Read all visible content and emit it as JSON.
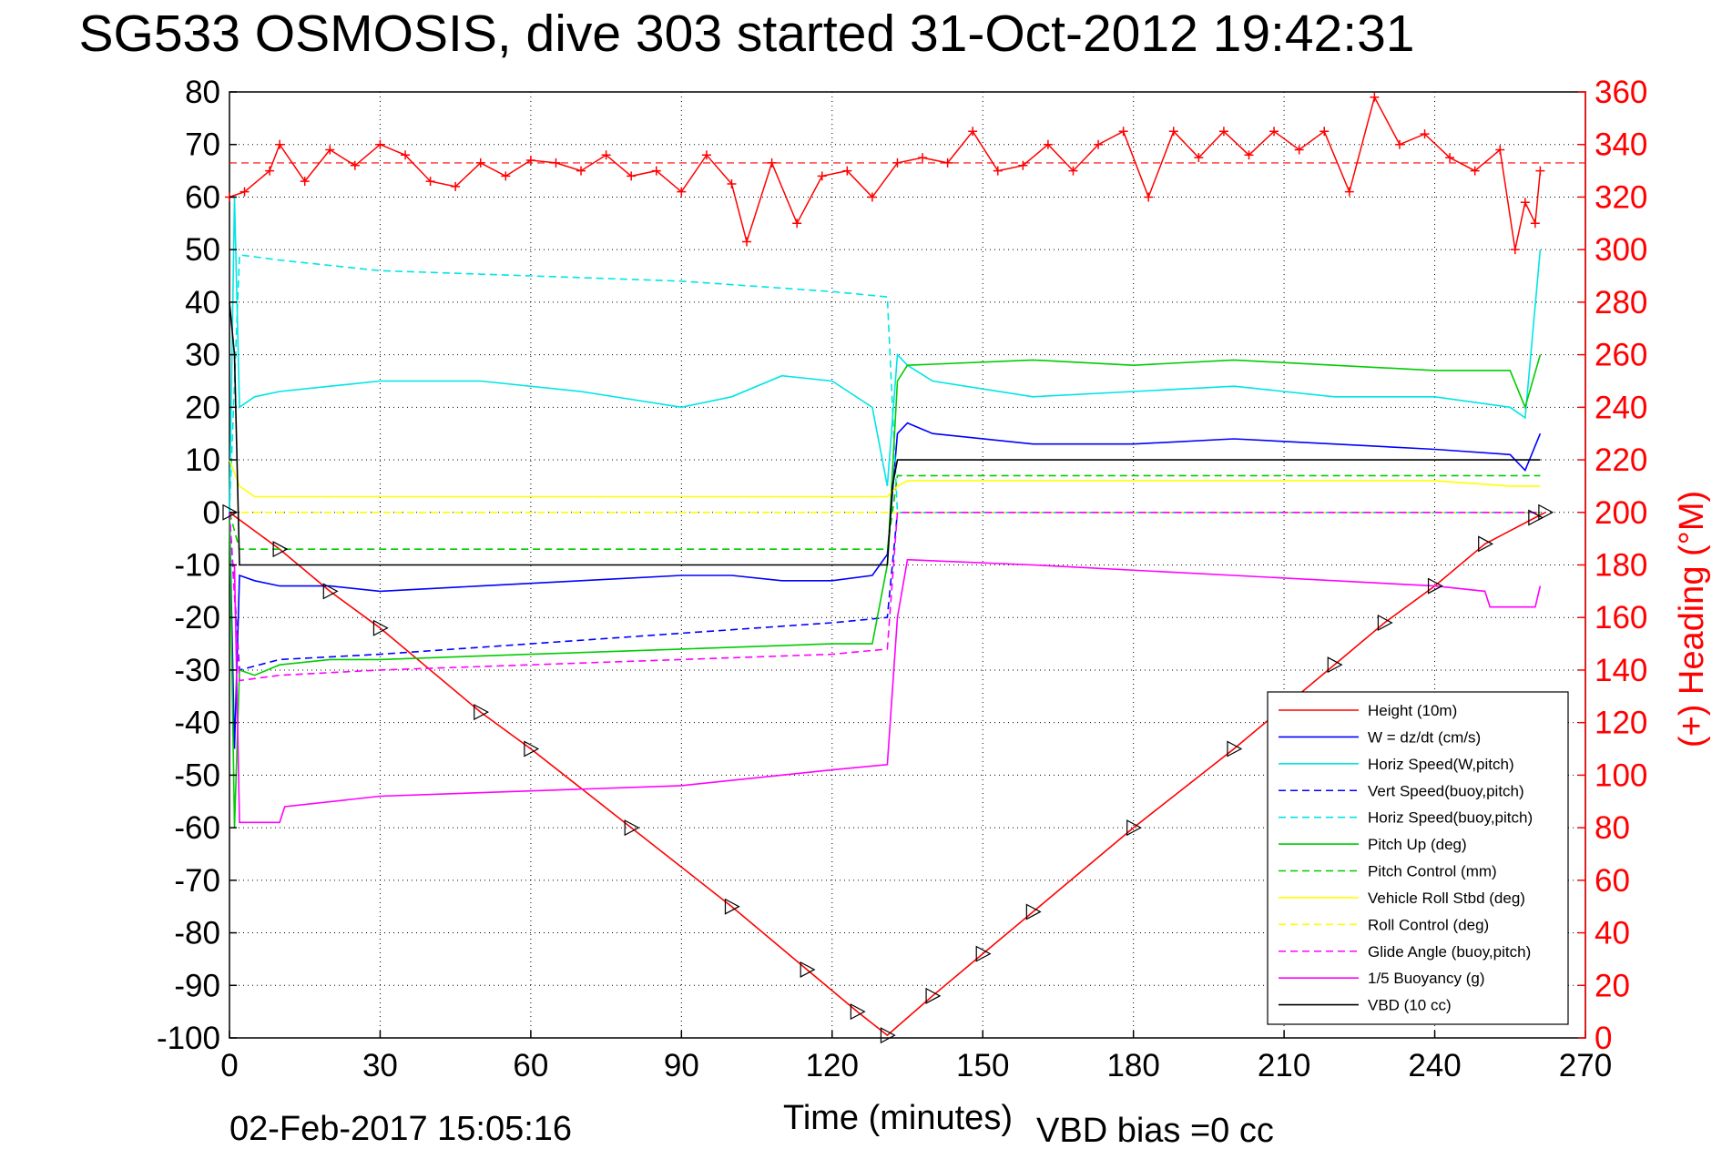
{
  "chart_data": {
    "type": "line",
    "title": "SG533 OSMOSIS, dive 303 started 31-Oct-2012 19:42:31",
    "xlabel": "Time (minutes)",
    "ylabel": "",
    "ylabel_right": "(+) Heading (°M)",
    "xlim": [
      0,
      270
    ],
    "ylim": [
      -100,
      80
    ],
    "ylim_right": [
      0,
      360
    ],
    "x_ticks": [
      "0",
      "30",
      "60",
      "90",
      "120",
      "150",
      "180",
      "210",
      "240",
      "270"
    ],
    "y_ticks": [
      "80",
      "70",
      "60",
      "50",
      "40",
      "30",
      "20",
      "10",
      "0",
      "-10",
      "-20",
      "-30",
      "-40",
      "-50",
      "-60",
      "-70",
      "-80",
      "-90",
      "-100"
    ],
    "y_right_ticks": [
      "360",
      "340",
      "320",
      "300",
      "280",
      "260",
      "240",
      "220",
      "200",
      "180",
      "160",
      "140",
      "120",
      "100",
      "80",
      "60",
      "40",
      "20",
      "0"
    ],
    "grid": true,
    "legend_position": "bottom-right",
    "footer_date": "02-Feb-2017 15:05:16",
    "footer_note": "VBD bias =0 cc",
    "series": [
      {
        "name": "Height (10m)",
        "color": "#ff0000",
        "style": "solid",
        "x": [
          0,
          10,
          20,
          30,
          50,
          60,
          80,
          100,
          115,
          125,
          131,
          140,
          150,
          160,
          180,
          200,
          210,
          220,
          230,
          240,
          250,
          260,
          262
        ],
        "y": [
          0,
          -7,
          -15,
          -22,
          -38,
          -45,
          -60,
          -75,
          -87,
          -95,
          -99.5,
          -92,
          -84,
          -76,
          -60,
          -45,
          -37,
          -29,
          -21,
          -14,
          -6,
          -1,
          0
        ]
      },
      {
        "name": "W = dz/dt (cm/s)",
        "color": "#0000ff",
        "style": "solid",
        "x": [
          0,
          1,
          2,
          5,
          10,
          20,
          30,
          50,
          70,
          90,
          100,
          110,
          120,
          128,
          131,
          133,
          135,
          140,
          160,
          180,
          200,
          220,
          240,
          255,
          258,
          261
        ],
        "y": [
          0,
          -45,
          -12,
          -13,
          -14,
          -14,
          -15,
          -14,
          -13,
          -12,
          -12,
          -13,
          -13,
          -12,
          -8,
          15,
          17,
          15,
          13,
          13,
          14,
          13,
          12,
          11,
          8,
          15
        ]
      },
      {
        "name": "Horiz Speed(W,pitch)",
        "color": "#00e5e5",
        "style": "solid",
        "x": [
          0,
          1,
          2,
          5,
          10,
          20,
          30,
          50,
          70,
          90,
          100,
          110,
          120,
          128,
          131,
          133,
          135,
          140,
          160,
          180,
          200,
          220,
          240,
          255,
          258,
          261
        ],
        "y": [
          0,
          60,
          20,
          22,
          23,
          24,
          25,
          25,
          23,
          20,
          22,
          26,
          25,
          20,
          5,
          30,
          28,
          25,
          22,
          23,
          24,
          22,
          22,
          20,
          18,
          50
        ]
      },
      {
        "name": "Vert Speed(buoy,pitch)",
        "color": "#0000ff",
        "style": "dashed",
        "x": [
          0,
          2,
          10,
          30,
          60,
          90,
          120,
          131,
          133,
          135,
          180,
          240,
          261
        ],
        "y": [
          0,
          -30,
          -28,
          -27,
          -25,
          -23,
          -21,
          -20,
          0,
          0,
          0,
          0,
          0
        ]
      },
      {
        "name": "Horiz Speed(buoy,pitch)",
        "color": "#00e5e5",
        "style": "dashed",
        "x": [
          0,
          2,
          10,
          30,
          60,
          90,
          120,
          131,
          133,
          135,
          180,
          240,
          261
        ],
        "y": [
          0,
          49,
          48,
          46,
          45,
          44,
          42,
          41,
          0,
          0,
          0,
          0,
          0
        ]
      },
      {
        "name": "Pitch Up (deg)",
        "color": "#00cc00",
        "style": "solid",
        "x": [
          0,
          1,
          2,
          5,
          10,
          20,
          30,
          60,
          90,
          120,
          128,
          131,
          133,
          135,
          160,
          180,
          200,
          220,
          240,
          255,
          258,
          261
        ],
        "y": [
          0,
          -60,
          -30,
          -31,
          -29,
          -28,
          -28,
          -27,
          -26,
          -25,
          -25,
          -10,
          25,
          28,
          29,
          28,
          29,
          28,
          27,
          27,
          20,
          30
        ]
      },
      {
        "name": "Pitch Control (mm)",
        "color": "#00cc00",
        "style": "dashed",
        "x": [
          0,
          2,
          10,
          30,
          60,
          90,
          120,
          131,
          133,
          135,
          180,
          240,
          261
        ],
        "y": [
          0,
          -7,
          -7,
          -7,
          -7,
          -7,
          -7,
          -7,
          7,
          7,
          7,
          7,
          7
        ]
      },
      {
        "name": "Vehicle Roll Stbd (deg)",
        "color": "#ffff00",
        "style": "solid",
        "x": [
          0,
          2,
          5,
          10,
          30,
          60,
          90,
          120,
          131,
          133,
          135,
          180,
          240,
          255,
          261
        ],
        "y": [
          10,
          5,
          3,
          3,
          3,
          3,
          3,
          3,
          3,
          5,
          6,
          6,
          6,
          5,
          5
        ]
      },
      {
        "name": "Roll Control (deg)",
        "color": "#ffff00",
        "style": "dashed",
        "x": [
          0,
          2,
          10,
          30,
          60,
          90,
          120,
          131,
          133,
          135,
          180,
          240,
          261
        ],
        "y": [
          0,
          0,
          0,
          0,
          0,
          0,
          0,
          0,
          0,
          0,
          0,
          0,
          0
        ]
      },
      {
        "name": "Glide Angle (buoy,pitch)",
        "color": "#ff00ff",
        "style": "dashed",
        "x": [
          0,
          2,
          10,
          30,
          60,
          90,
          120,
          131,
          133,
          135,
          180,
          240,
          261
        ],
        "y": [
          0,
          -32,
          -31,
          -30,
          -29,
          -28,
          -27,
          -26,
          0,
          0,
          0,
          0,
          0
        ]
      },
      {
        "name": "1/5 Buoyancy (g)",
        "color": "#ff00ff",
        "style": "solid",
        "x": [
          0,
          1,
          2,
          10,
          11,
          30,
          60,
          90,
          120,
          131,
          133,
          135,
          160,
          200,
          240,
          250,
          251,
          260,
          261
        ],
        "y": [
          -10,
          -10,
          -59,
          -59,
          -56,
          -54,
          -53,
          -52,
          -49,
          -48,
          -20,
          -9,
          -10,
          -12,
          -14,
          -15,
          -18,
          -18,
          -14
        ]
      },
      {
        "name": "VBD (10 cc)",
        "color": "#000000",
        "style": "solid",
        "x": [
          0,
          1,
          2,
          131,
          132,
          133,
          135,
          140,
          180,
          240,
          261
        ],
        "y": [
          40,
          30,
          -10,
          -10,
          5,
          10,
          10,
          10,
          10,
          10,
          10
        ]
      }
    ],
    "heading_series": {
      "name": "Heading (°M)",
      "color": "#ff0000",
      "marker": "+",
      "axis": "right",
      "reference_line": 333,
      "x": [
        0,
        3,
        8,
        10,
        15,
        20,
        25,
        30,
        35,
        40,
        45,
        50,
        55,
        60,
        65,
        70,
        75,
        80,
        85,
        90,
        95,
        100,
        103,
        108,
        113,
        118,
        123,
        128,
        133,
        138,
        143,
        148,
        153,
        158,
        163,
        168,
        173,
        178,
        183,
        188,
        193,
        198,
        203,
        208,
        213,
        218,
        223,
        228,
        233,
        238,
        243,
        248,
        253,
        256,
        258,
        260,
        261
      ],
      "y": [
        320,
        322,
        330,
        340,
        326,
        338,
        332,
        340,
        336,
        326,
        324,
        333,
        328,
        334,
        333,
        330,
        336,
        328,
        330,
        322,
        336,
        325,
        303,
        333,
        310,
        328,
        330,
        320,
        333,
        335,
        333,
        345,
        330,
        332,
        340,
        330,
        340,
        345,
        320,
        345,
        335,
        345,
        336,
        345,
        338,
        345,
        322,
        358,
        340,
        344,
        335,
        330,
        338,
        300,
        318,
        310,
        330
      ]
    }
  }
}
